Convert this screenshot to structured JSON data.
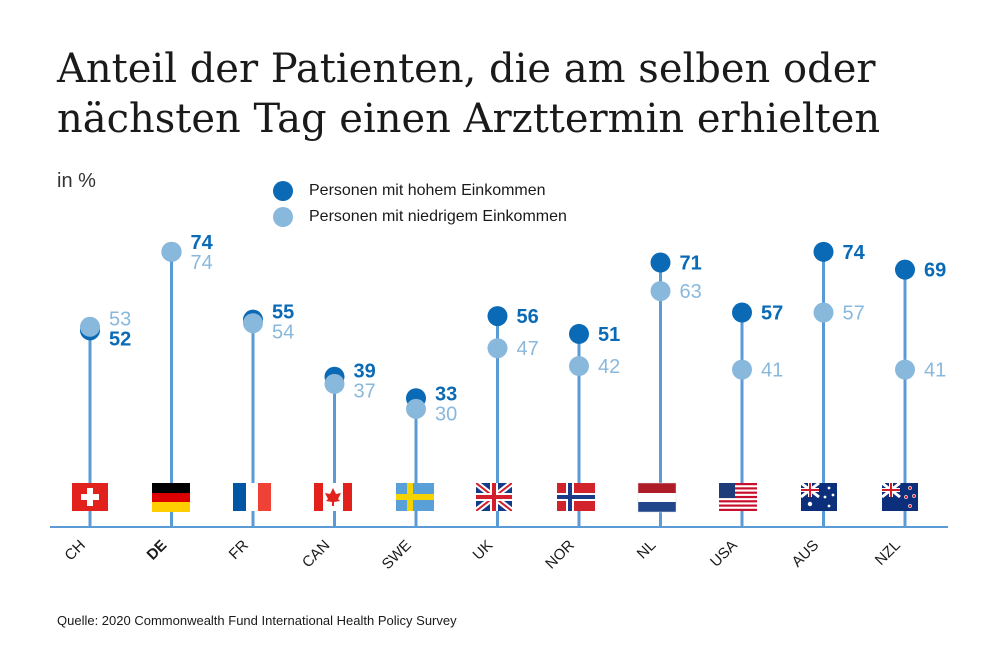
{
  "title_line1": "Anteil der Patienten, die am selben oder",
  "title_line2": "nächsten Tag einen Arzttermin erhielten",
  "unit": "in %",
  "source": "Quelle: 2020 Commonwealth Fund International Health Policy Survey",
  "colors": {
    "high": "#0a6ab5",
    "low": "#89b8dd",
    "axis": "#5b9bd5"
  },
  "chart_data": {
    "type": "scatter",
    "title": "Anteil der Patienten, die am selben oder nächsten Tag einen Arzttermin erhielten",
    "ylabel": "in %",
    "ylim": [
      0,
      80
    ],
    "grid": false,
    "legend_placement": "top-center",
    "categories": [
      "CH",
      "DE",
      "FR",
      "CAN",
      "SWE",
      "UK",
      "NOR",
      "NL",
      "USA",
      "AUS",
      "NZL"
    ],
    "highlight_category": "DE",
    "series": [
      {
        "name": "Personen mit hohem Einkommen",
        "values": [
          52,
          74,
          55,
          39,
          33,
          56,
          51,
          71,
          57,
          74,
          69
        ]
      },
      {
        "name": "Personen mit niedrigem Einkommen",
        "values": [
          53,
          74,
          54,
          37,
          30,
          47,
          42,
          63,
          41,
          57,
          41
        ]
      }
    ],
    "flags": [
      "flag-switzerland",
      "flag-germany",
      "flag-france",
      "flag-canada",
      "flag-sweden",
      "flag-uk",
      "flag-norway",
      "flag-netherlands",
      "flag-usa",
      "flag-australia",
      "flag-new-zealand"
    ]
  }
}
